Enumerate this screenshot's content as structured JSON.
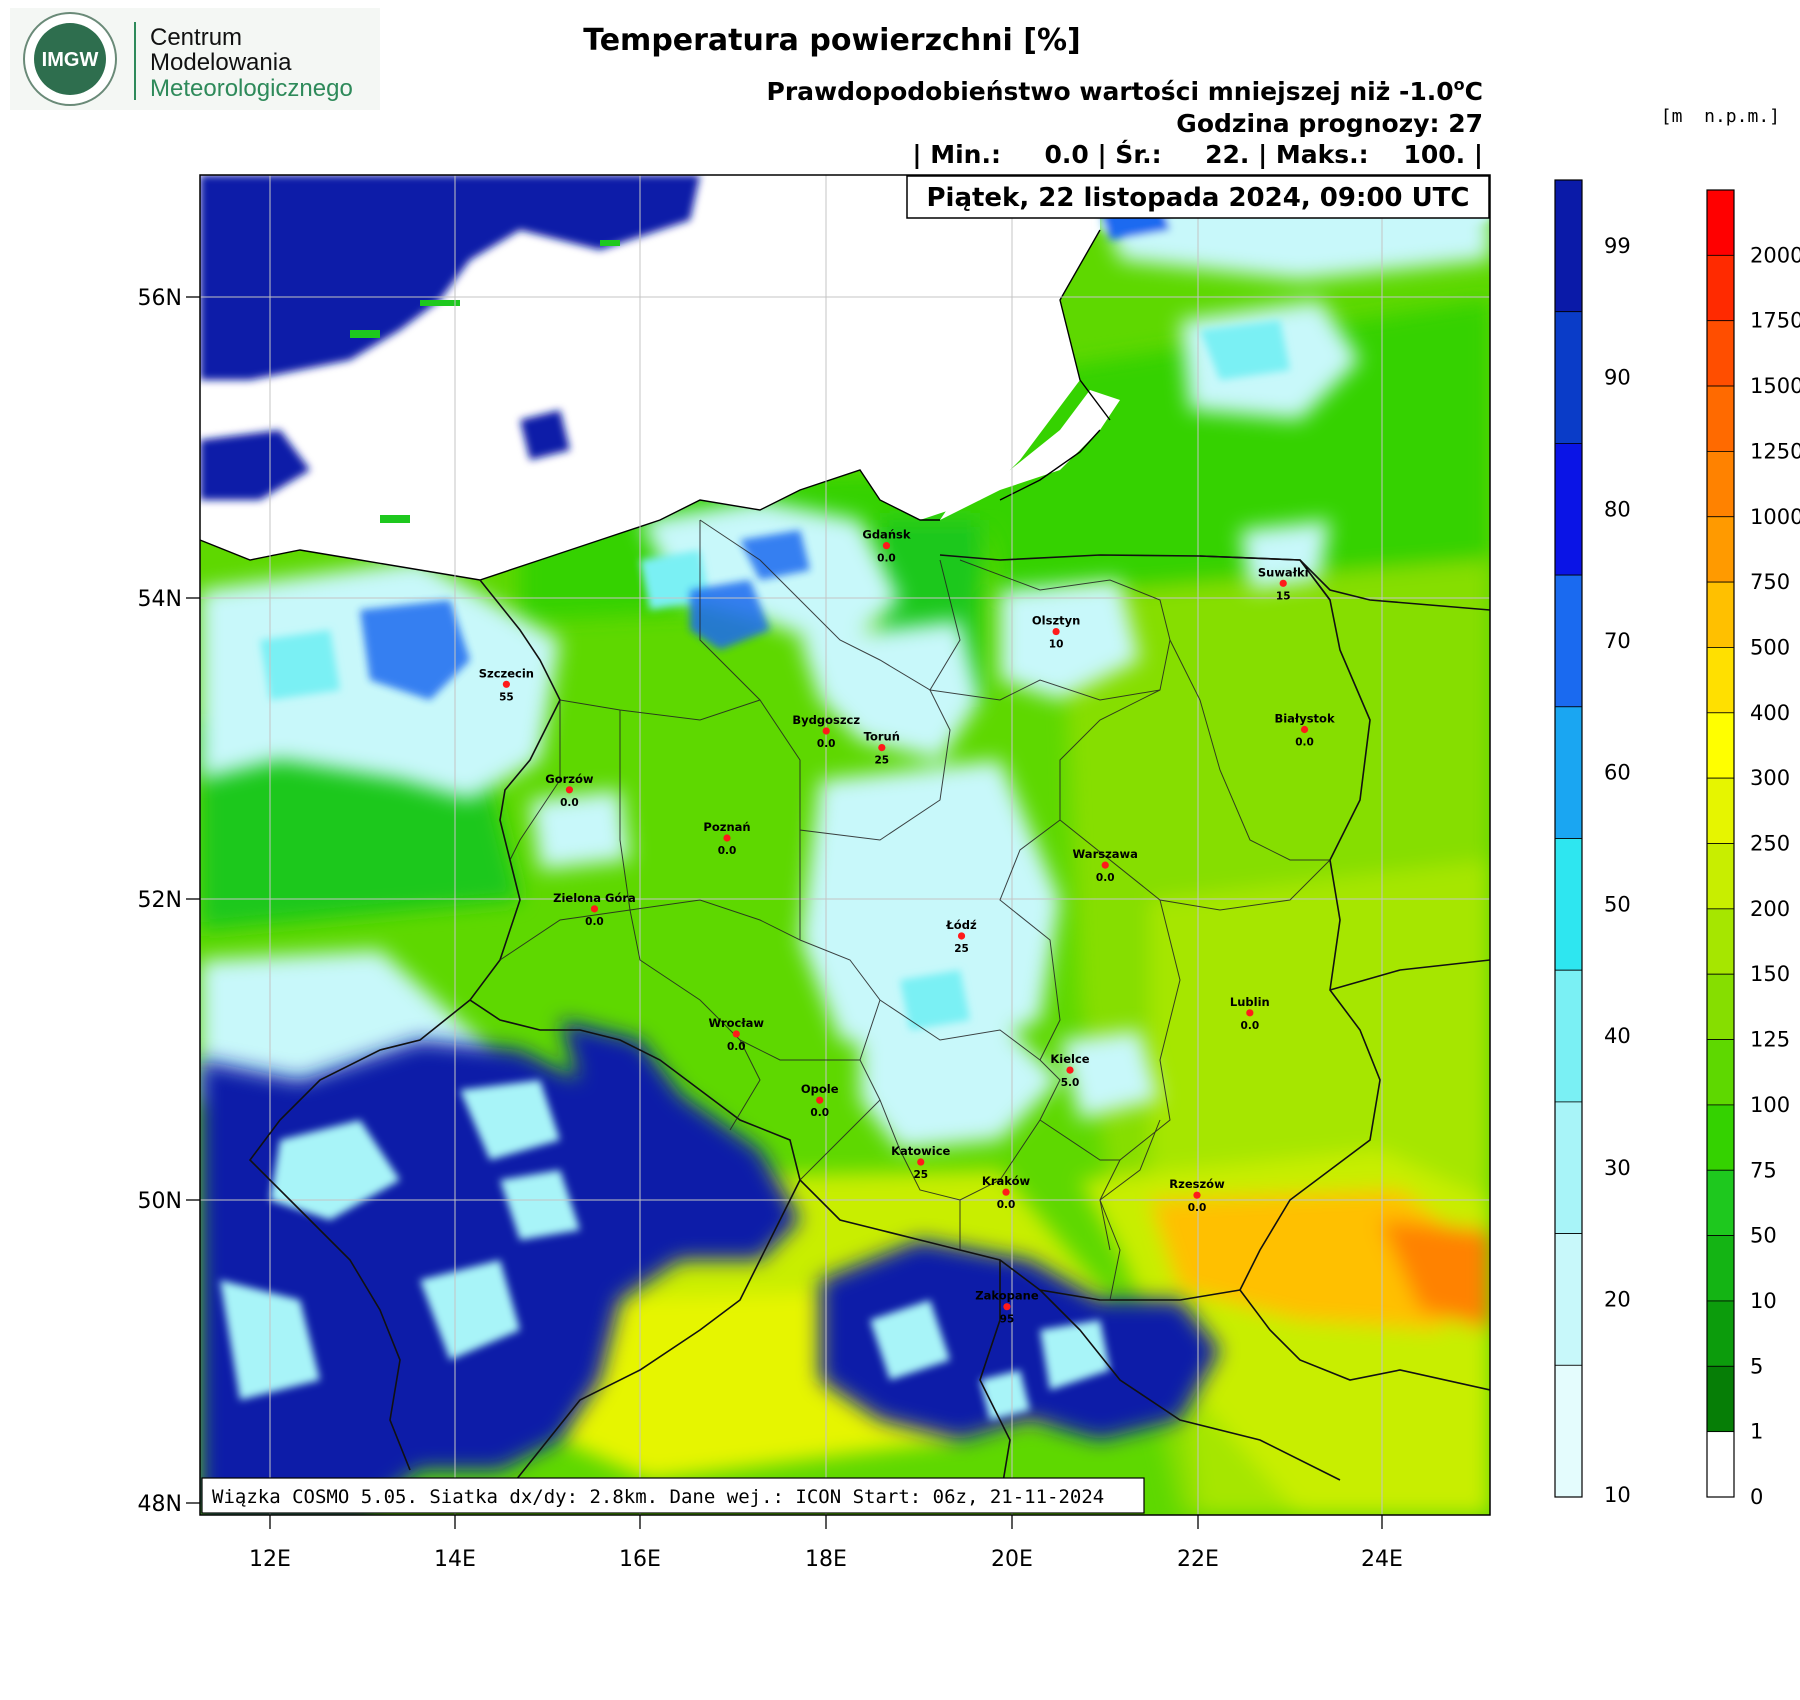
{
  "logo": {
    "badge": "IMGW",
    "line1": "Centrum",
    "line2": "Modelowania",
    "line3": "Meteorologicznego"
  },
  "header": {
    "title": "Temperatura powierzchni [%]",
    "subtitle_prefix": "Prawdopodobieństwo wartości mniejszej niż -1.0",
    "subtitle_deg": "o",
    "subtitle_unit": "C",
    "forecast_hour": "Godzina prognozy: 27",
    "stats": "| Min.:     0.0 | Śr.:     22. | Maks.:    100. |",
    "date": "Piątek, 22 listopada 2024, 09:00 UTC",
    "elev_unit": "[m  n.p.m.]"
  },
  "footer": {
    "text": "Wiązka COSMO 5.05. Siatka dx/dy: 2.8km. Dane wej.: ICON Start: 06z, 21-11-2024"
  },
  "axes": {
    "lat_labels": [
      "56N",
      "54N",
      "52N",
      "50N",
      "48N"
    ],
    "lon_labels": [
      "12E",
      "14E",
      "16E",
      "18E",
      "20E",
      "22E",
      "24E"
    ]
  },
  "colorbar_prob": {
    "labels": [
      "99",
      "90",
      "80",
      "70",
      "60",
      "50",
      "40",
      "30",
      "20",
      "10"
    ],
    "colors": [
      "#0a1aa8",
      "#0a3cc8",
      "#0a14e6",
      "#1a6af0",
      "#1aa6f2",
      "#2ee6f0",
      "#7af0f4",
      "#a8f4f8",
      "#c8f8fa",
      "#e4fcfd"
    ]
  },
  "colorbar_elev": {
    "labels": [
      "2000",
      "1750",
      "1500",
      "1250",
      "1000",
      "750",
      "500",
      "400",
      "300",
      "250",
      "200",
      "150",
      "125",
      "100",
      "75",
      "50",
      "10",
      "5",
      "1",
      "0"
    ],
    "colors": [
      "#ff0000",
      "#ff2a00",
      "#ff4e00",
      "#ff6a00",
      "#ff8200",
      "#ff9a00",
      "#ffc000",
      "#ffe000",
      "#ffff00",
      "#e6f500",
      "#c8ee00",
      "#a6e600",
      "#86de00",
      "#5ed800",
      "#34d200",
      "#1ec81e",
      "#14b414",
      "#0c9c0c",
      "#067e06",
      "#ffffff"
    ]
  },
  "cities": [
    {
      "name": "Gdańsk",
      "value": "0.0"
    },
    {
      "name": "Suwałki",
      "value": "15"
    },
    {
      "name": "Olsztyn",
      "value": "10"
    },
    {
      "name": "Szczecin",
      "value": "55"
    },
    {
      "name": "Bydgoszcz",
      "value": "0.0"
    },
    {
      "name": "Toruń",
      "value": "25"
    },
    {
      "name": "Białystok",
      "value": "0.0"
    },
    {
      "name": "Gorzów",
      "value": "0.0"
    },
    {
      "name": "Poznań",
      "value": "0.0"
    },
    {
      "name": "Warszawa",
      "value": "0.0"
    },
    {
      "name": "Zielona Góra",
      "value": "0.0"
    },
    {
      "name": "Łódź",
      "value": "25"
    },
    {
      "name": "Lublin",
      "value": "0.0"
    },
    {
      "name": "Wrocław",
      "value": "0.0"
    },
    {
      "name": "Kielce",
      "value": "5.0"
    },
    {
      "name": "Opole",
      "value": "0.0"
    },
    {
      "name": "Katowice",
      "value": "25"
    },
    {
      "name": "Kraków",
      "value": "0.0"
    },
    {
      "name": "Rzeszów",
      "value": "0.0"
    },
    {
      "name": "Zakopane",
      "value": "95"
    }
  ]
}
